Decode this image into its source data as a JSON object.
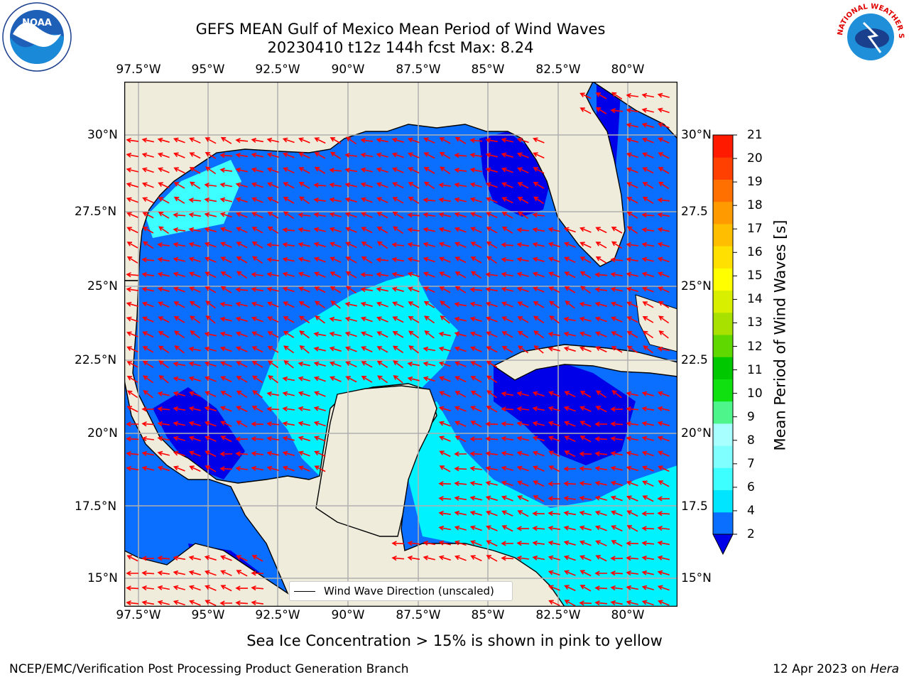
{
  "title": {
    "line1": "GEFS MEAN Gulf of Mexico Mean Period of Wind Waves",
    "line2": "20230410 t12z 144h fcst   Max: 8.24"
  },
  "axes": {
    "lon_ticks": [
      "97.5°W",
      "95°W",
      "92.5°W",
      "90°W",
      "87.5°W",
      "85°W",
      "82.5°W",
      "80°W"
    ],
    "lat_ticks_left": [
      "30°N",
      "27.5°N",
      "25°N",
      "22.5°N",
      "20°N",
      "17.5°N",
      "15°N"
    ],
    "lat_ticks_right": [
      "30°N",
      "27.5",
      "25°N",
      "22.5",
      "20°N",
      "17.5",
      "15°N"
    ]
  },
  "legend": {
    "label": "Wind Wave Direction (unscaled)"
  },
  "colorbar": {
    "label": "Mean Period of Wind Waves [s]",
    "ticks": [
      "2",
      "4",
      "6",
      "7",
      "8",
      "9",
      "10",
      "11",
      "12",
      "13",
      "14",
      "15",
      "16",
      "17",
      "18",
      "19",
      "20",
      "21"
    ],
    "colors": [
      "#0a6fff",
      "#00e5ff",
      "#3dffff",
      "#7fffff",
      "#a8ffff",
      "#4df58a",
      "#10e010",
      "#00c800",
      "#5fd800",
      "#a8e000",
      "#d8f000",
      "#ffff00",
      "#ffe000",
      "#ffbf00",
      "#ff9a00",
      "#ff7000",
      "#ff4000",
      "#ff1a00"
    ]
  },
  "colors": {
    "land": "#efecdc",
    "ocean_2_4": "#0a6fff",
    "ocean_lt_2": "#0000e8",
    "ocean_4_6": "#00f2ff",
    "ocean_6_7": "#3dffff",
    "arrow": "#ff0000",
    "grid": "#b0b0b0"
  },
  "footer": {
    "note": "Sea Ice Concentration > 15% is shown in pink to yellow",
    "credit": "NCEP/EMC/Verification Post Processing Product Generation Branch",
    "date": "12 Apr 2023 on ",
    "host": "Hera"
  },
  "logos": {
    "left": "NOAA",
    "right": "NATIONAL WEATHER SERVICE"
  }
}
